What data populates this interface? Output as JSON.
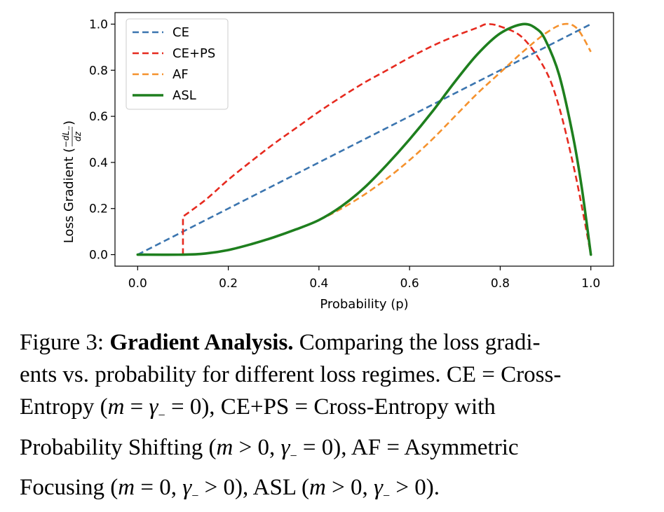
{
  "chart_data": {
    "type": "line",
    "xlabel": "Probability (p)",
    "ylabel_prefix": "Loss Gradient (",
    "ylabel_num": "−dL",
    "ylabel_sub": "−",
    "ylabel_den": "dz",
    "ylabel_suffix": ")",
    "xlim": [
      -0.05,
      1.05
    ],
    "ylim": [
      -0.05,
      1.05
    ],
    "xticks": [
      0.0,
      0.2,
      0.4,
      0.6,
      0.8,
      1.0
    ],
    "xtick_labels": [
      "0.0",
      "0.2",
      "0.4",
      "0.6",
      "0.8",
      "1.0"
    ],
    "yticks": [
      0.0,
      0.2,
      0.4,
      0.6,
      0.8,
      1.0
    ],
    "ytick_labels": [
      "0.0",
      "0.2",
      "0.4",
      "0.6",
      "0.8",
      "1.0"
    ],
    "grid": false,
    "legend_position": "top-left",
    "series": [
      {
        "name": "CE",
        "color": "#3b75af",
        "style": "dashed",
        "x": [
          0.0,
          0.2,
          0.4,
          0.6,
          0.8,
          1.0
        ],
        "y": [
          0.0,
          0.2,
          0.4,
          0.6,
          0.8,
          1.0
        ]
      },
      {
        "name": "CE+PS",
        "color": "#e62a1f",
        "style": "dashed",
        "x": [
          0.1,
          0.1,
          0.15,
          0.2,
          0.25,
          0.3,
          0.35,
          0.4,
          0.45,
          0.5,
          0.55,
          0.6,
          0.65,
          0.7,
          0.75,
          0.77,
          0.8,
          0.85,
          0.9,
          0.93,
          0.96,
          0.98,
          1.0
        ],
        "y": [
          0.0,
          0.165,
          0.238,
          0.325,
          0.404,
          0.48,
          0.55,
          0.62,
          0.685,
          0.746,
          0.8,
          0.855,
          0.905,
          0.948,
          0.985,
          1.0,
          0.99,
          0.94,
          0.8,
          0.64,
          0.4,
          0.21,
          0.0
        ]
      },
      {
        "name": "AF",
        "color": "#f5922e",
        "style": "dashed",
        "x": [
          0.0,
          0.1,
          0.15,
          0.2,
          0.25,
          0.3,
          0.35,
          0.4,
          0.45,
          0.5,
          0.55,
          0.6,
          0.65,
          0.7,
          0.75,
          0.8,
          0.85,
          0.9,
          0.94,
          0.97,
          1.0
        ],
        "y": [
          0.0,
          0.0,
          0.005,
          0.02,
          0.045,
          0.075,
          0.11,
          0.15,
          0.2,
          0.26,
          0.33,
          0.41,
          0.5,
          0.6,
          0.7,
          0.79,
          0.88,
          0.96,
          1.0,
          0.98,
          0.88
        ]
      },
      {
        "name": "ASL",
        "color": "#1e7f1e",
        "style": "solid",
        "x": [
          0.0,
          0.1,
          0.15,
          0.2,
          0.25,
          0.3,
          0.35,
          0.4,
          0.45,
          0.5,
          0.55,
          0.6,
          0.65,
          0.7,
          0.75,
          0.8,
          0.85,
          0.88,
          0.9,
          0.93,
          0.96,
          0.98,
          1.0
        ],
        "y": [
          0.0,
          0.0,
          0.005,
          0.02,
          0.045,
          0.075,
          0.11,
          0.15,
          0.21,
          0.29,
          0.39,
          0.5,
          0.62,
          0.75,
          0.87,
          0.96,
          1.0,
          0.98,
          0.93,
          0.78,
          0.52,
          0.29,
          0.0
        ]
      }
    ]
  },
  "caption": {
    "label": "Figure 3: ",
    "bold_title": "Gradient Analysis.",
    "line1_rest": " Comparing the loss gradi-",
    "line2": "ents vs. probability for different loss regimes. CE = Cross-",
    "line3_a": "Entropy (",
    "line3_m": "m",
    "line3_b": " = ",
    "line3_g": "γ",
    "line3_sub": "−",
    "line3_c": " = 0), CE+PS = Cross-Entropy with",
    "line4_a": "Probability Shifting (",
    "line4_m": "m",
    "line4_b": " > 0, ",
    "line4_g": "γ",
    "line4_sub": "−",
    "line4_c": " = 0), AF = Asymmetric",
    "line5_a": "Focusing (",
    "line5_m": "m",
    "line5_b": " = 0, ",
    "line5_g": "γ",
    "line5_sub": "−",
    "line5_c": " > 0), ASL (",
    "line5_m2": "m",
    "line5_d": " > 0, ",
    "line5_g2": "γ",
    "line5_sub2": "−",
    "line5_e": " > 0)."
  }
}
